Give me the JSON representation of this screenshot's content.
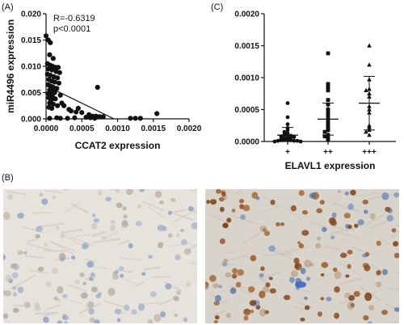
{
  "panels": {
    "a_label": "(A)",
    "b_label": "(B)",
    "c_label": "(C)"
  },
  "chart_data": [
    {
      "type": "scatter",
      "title": "",
      "xlabel": "CCAT2 expression",
      "ylabel": "miR4496 expression",
      "xlim": [
        0,
        0.002
      ],
      "ylim": [
        0,
        0.02
      ],
      "xticks": [
        "0.0000",
        "0.0005",
        "0.0010",
        "0.0015",
        "0.0020"
      ],
      "yticks": [
        "0.000",
        "0.005",
        "0.010",
        "0.015",
        "0.020"
      ],
      "annotations": [
        "R=-0.6319",
        "p<0.0001"
      ],
      "regression_line": {
        "x": [
          0.0,
          0.00095
        ],
        "y": [
          0.0063,
          0.0
        ]
      },
      "points": [
        [
          0.0,
          0.0158
        ],
        [
          3e-05,
          0.015
        ],
        [
          6e-05,
          0.0145
        ],
        [
          5e-05,
          0.0122
        ],
        [
          0.0001,
          0.0115
        ],
        [
          2e-05,
          0.0105
        ],
        [
          6e-05,
          0.0102
        ],
        [
          9e-05,
          0.01
        ],
        [
          0.00013,
          0.0098
        ],
        [
          0.00017,
          0.0098
        ],
        [
          3e-05,
          0.0095
        ],
        [
          8e-05,
          0.0093
        ],
        [
          0.00014,
          0.009
        ],
        [
          0.00019,
          0.0088
        ],
        [
          2e-05,
          0.0085
        ],
        [
          6e-05,
          0.0083
        ],
        [
          0.00011,
          0.008
        ],
        [
          0.00016,
          0.0078
        ],
        [
          4e-05,
          0.0075
        ],
        [
          8e-05,
          0.0072
        ],
        [
          0.00012,
          0.007
        ],
        [
          0.00018,
          0.0068
        ],
        [
          3e-05,
          0.0065
        ],
        [
          7e-05,
          0.0062
        ],
        [
          0.0001,
          0.006
        ],
        [
          0.00015,
          0.0058
        ],
        [
          5e-05,
          0.0055
        ],
        [
          8e-05,
          0.0052
        ],
        [
          0.00012,
          0.005
        ],
        [
          3e-05,
          0.0048
        ],
        [
          6e-05,
          0.0045
        ],
        [
          0.0002,
          0.0045
        ],
        [
          9e-05,
          0.0042
        ],
        [
          4e-05,
          0.004
        ],
        [
          0.00013,
          0.0038
        ],
        [
          7e-05,
          0.0035
        ],
        [
          5e-05,
          0.003
        ],
        [
          0.0001,
          0.0028
        ],
        [
          0.00016,
          0.0025
        ],
        [
          4e-05,
          0.0022
        ],
        [
          8e-05,
          0.002
        ],
        [
          0.00022,
          0.003
        ],
        [
          0.00025,
          0.0025
        ],
        [
          0.00032,
          0.0018
        ],
        [
          0.00035,
          0.0015
        ],
        [
          0.00042,
          0.0013
        ],
        [
          0.00045,
          0.002
        ],
        [
          0.0005,
          0.0012
        ],
        [
          0.0006,
          0.0008
        ],
        [
          0.00065,
          0.0005
        ],
        [
          0.0007,
          0.0005
        ],
        [
          0.00075,
          0.0004
        ],
        [
          0.0008,
          0.0004
        ],
        [
          0.00072,
          0.006
        ],
        [
          0.00068,
          0.0001
        ],
        [
          0.00062,
          0.0002
        ],
        [
          0.00056,
          0.0003
        ],
        [
          0.0003,
          0.0001
        ],
        [
          0.00015,
          0.0002
        ],
        [
          5e-05,
          0.0001
        ],
        [
          0.0002,
          0.0001
        ],
        [
          0.0004,
          0.0002
        ],
        [
          0.00118,
          0.0001
        ],
        [
          0.00125,
          0.0001
        ],
        [
          0.00132,
          0.0001
        ],
        [
          0.00155,
          0.001
        ]
      ]
    },
    {
      "type": "scatter",
      "title": "",
      "xlabel": "ELAVL1 expression",
      "ylabel": "",
      "categories": [
        "+",
        "++",
        "+++"
      ],
      "ylim": [
        0,
        0.002
      ],
      "yticks": [
        "0.0000",
        "0.0005",
        "0.0010",
        "0.0015",
        "0.0020"
      ],
      "series": [
        {
          "name": "",
          "marker": "circle",
          "mean": 0.0001,
          "sd": 0.00012,
          "values": [
            0.0006,
            0.00038,
            0.00027,
            0.00021,
            0.00018,
            0.00015,
            0.00013,
            0.00011,
            0.0001,
            0.0001,
            9e-05,
            8e-05,
            7e-05,
            6e-05,
            5e-05,
            5e-05,
            4e-05,
            3e-05,
            3e-05,
            2e-05,
            2e-05,
            1e-05,
            1e-05,
            1e-05,
            0.0,
            0.0
          ]
        },
        {
          "name": "",
          "marker": "square",
          "mean": 0.00035,
          "sd": 0.00025,
          "values": [
            0.00138,
            0.0009,
            0.00085,
            0.0008,
            0.00065,
            0.00058,
            0.0005,
            0.00045,
            0.0004,
            0.00035,
            0.0003,
            0.00028,
            0.00025,
            0.0002,
            0.00018,
            0.00015,
            0.0001,
            8e-05,
            5e-05,
            3e-05
          ]
        },
        {
          "name": "",
          "marker": "triangle",
          "mean": 0.0006,
          "sd": 0.00042,
          "values": [
            0.0015,
            0.0012,
            0.00097,
            0.00082,
            0.0008,
            0.00075,
            0.0007,
            0.00055,
            0.0005,
            0.00045,
            0.00025,
            0.00022,
            0.00018,
            0.00015,
            0.0001
          ]
        }
      ]
    }
  ],
  "images": {
    "left_micrograph": "weak-staining-micrograph",
    "right_micrograph": "strong-staining-micrograph"
  },
  "colors": {
    "ink": "#111111",
    "stain_brown": "#9a5b2a",
    "stain_blue": "#6f8fc4",
    "background_light": "#e6e2dc",
    "background_dark": "#d8d4cc"
  }
}
